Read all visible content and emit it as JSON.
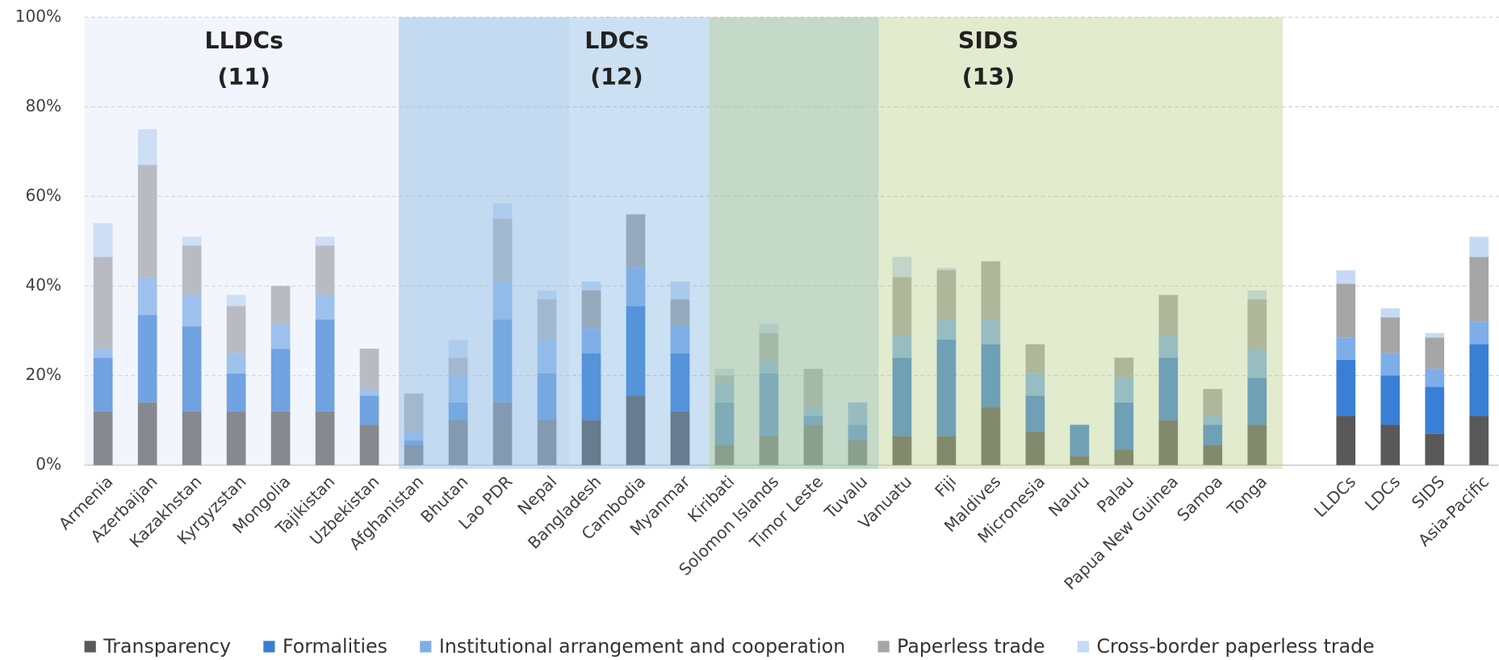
{
  "chart_data": {
    "type": "stacked_bar",
    "categories": [
      "Armenia",
      "Azerbaijan",
      "Kazakhstan",
      "Kyrgyzstan",
      "Mongolia",
      "Tajikistan",
      "Uzbekistan",
      "Afghanistan",
      "Bhutan",
      "Lao PDR",
      "Nepal",
      "Bangladesh",
      "Cambodia",
      "Myanmar",
      "Kiribati",
      "Solomon Islands",
      "Timor Leste",
      "Tuvalu",
      "Vanuatu",
      "Fiji",
      "Maldives",
      "Micronesia",
      "Nauru",
      "Palau",
      "Papua New Guinea",
      "Samoa",
      "Tonga",
      null,
      "LLDCs",
      "LDCs",
      "SIDS",
      "Asia-Pacific"
    ],
    "series": [
      {
        "name": "Transparency",
        "color": "#595959",
        "values": [
          12,
          14,
          12,
          12,
          12,
          12,
          9,
          4.5,
          10,
          14,
          10,
          10,
          15.5,
          12,
          4.5,
          6.5,
          9,
          5.5,
          6.5,
          6.5,
          13,
          7.5,
          2,
          3.5,
          10,
          4.5,
          9,
          null,
          11,
          9,
          7,
          11
        ]
      },
      {
        "name": "Formalities",
        "color": "#3a7fd6",
        "values": [
          12,
          19.5,
          19,
          8.5,
          14,
          20.5,
          6.5,
          1,
          4,
          18.5,
          10.5,
          15,
          20,
          13,
          9.5,
          14,
          2,
          3.5,
          17.5,
          21.5,
          14,
          8,
          7,
          10.5,
          14,
          4.5,
          10.5,
          null,
          12.5,
          11,
          10.5,
          16
        ]
      },
      {
        "name": "Institutional arrangement and cooperation",
        "color": "#7eaeea",
        "values": [
          2,
          8.5,
          7,
          4.5,
          5.5,
          5.5,
          1.5,
          2,
          6,
          8.5,
          7.5,
          5.5,
          8.5,
          6,
          4.5,
          2.5,
          2,
          5,
          5,
          4.5,
          5.5,
          5,
          0,
          5.5,
          5,
          2,
          6.5,
          null,
          5,
          5,
          4,
          5
        ]
      },
      {
        "name": "Paperless trade",
        "color": "#a6a6a6",
        "values": [
          20.5,
          25,
          11,
          10.5,
          8.5,
          11,
          9,
          8.5,
          4,
          14,
          9,
          8.5,
          12,
          6,
          1.5,
          6.5,
          8.5,
          0,
          13,
          11,
          13,
          6.5,
          0,
          4.5,
          9,
          6,
          11,
          null,
          12,
          8,
          7,
          14.5
        ]
      },
      {
        "name": "Cross-border paperless trade",
        "color": "#c6daf5",
        "values": [
          7.5,
          8,
          2,
          2.5,
          0,
          2,
          0,
          0,
          4,
          3.5,
          2,
          2,
          0,
          4,
          1.5,
          2,
          0,
          0,
          4.5,
          0.5,
          0,
          0,
          0,
          0,
          0,
          0,
          2,
          null,
          3,
          2,
          1,
          4.5
        ]
      }
    ],
    "groups": [
      {
        "label": "LLDCs",
        "count": "(11)"
      },
      {
        "label": "LDCs",
        "count": "(12)"
      },
      {
        "label": "SIDS",
        "count": "(13)"
      }
    ],
    "ylim": [
      0,
      100
    ],
    "yticks": [
      {
        "value": 0,
        "label": "0%"
      },
      {
        "value": 20,
        "label": "20%"
      },
      {
        "value": 40,
        "label": "40%"
      },
      {
        "value": 60,
        "label": "60%"
      },
      {
        "value": 80,
        "label": "80%"
      },
      {
        "value": 100,
        "label": "100%"
      }
    ],
    "grid": true,
    "legend": "bottom"
  }
}
